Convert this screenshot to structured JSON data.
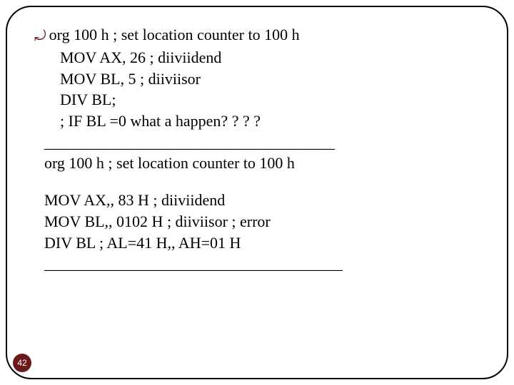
{
  "bullet": {
    "icon": "⚗",
    "text": "org  100 h   ; set location counter to 100 h"
  },
  "indented_lines": [
    "MOV AX, 26 ; diiviidend",
    "MOV BL, 5 ; diiviisor",
    "DIV BL;",
    "; IF BL =0 what a happen? ? ? ?"
  ],
  "divider1": "_____________________________________",
  "line_org2": "org  100 h       ; set location counter to 100 h",
  "body_lines": [
    "MOV AX,, 83 H ; diiviidend",
    "MOV BL,, 0102 H ; diiviisor ; error",
    "DIV BL ; AL=41 H,, AH=01 H"
  ],
  "divider2": "______________________________________",
  "page_number": "42",
  "colors": {
    "bullet_icon": "#5a1a1a",
    "text": "#000000",
    "badge_bg": "#6b1a1a",
    "badge_text": "#ffffff",
    "border": "#000000",
    "background": "#ffffff"
  }
}
